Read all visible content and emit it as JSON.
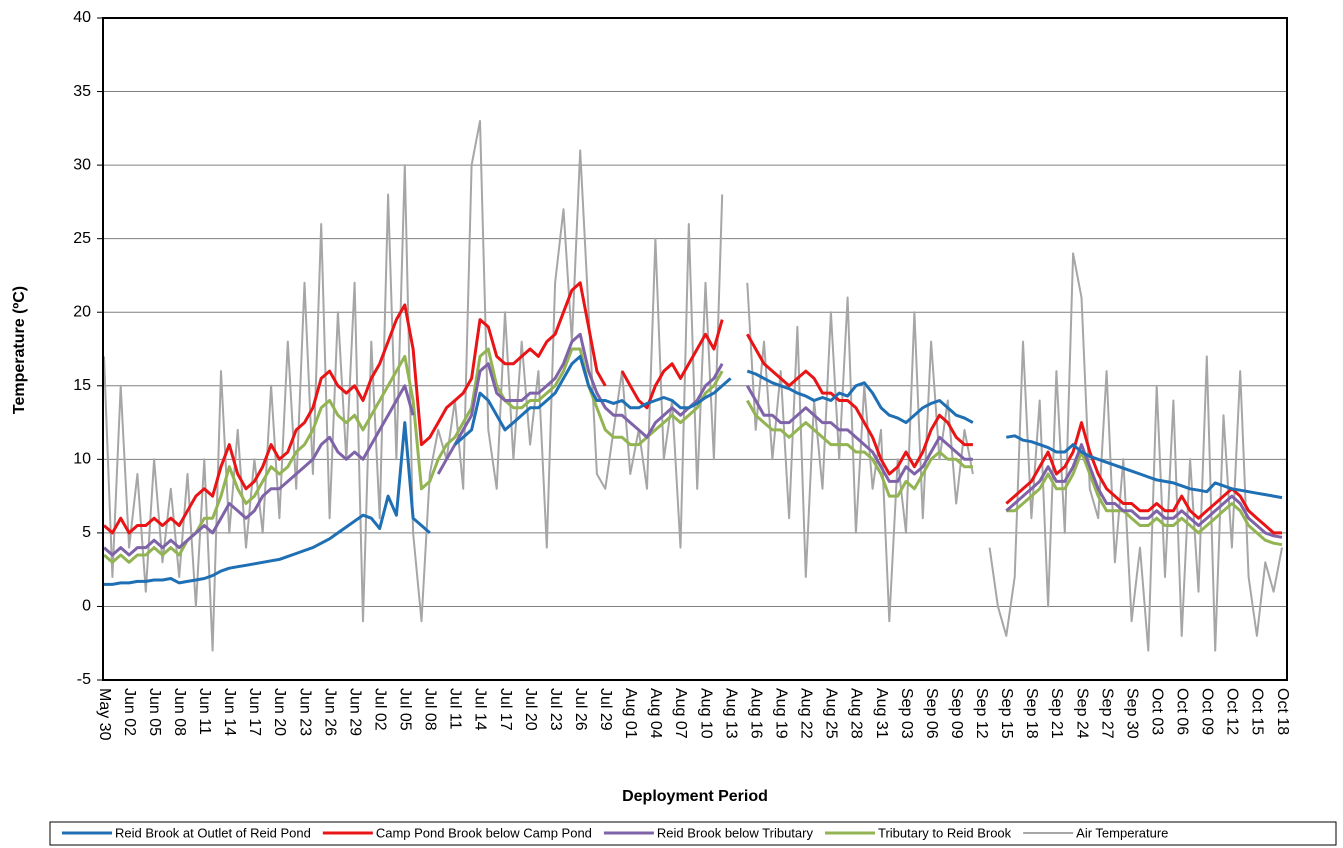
{
  "chart_data": {
    "type": "line",
    "y_label": "Temperature (ºC)",
    "x_label": "Deployment Period",
    "ylim": [
      -5,
      40
    ],
    "yticks": [
      -5,
      0,
      5,
      10,
      15,
      20,
      25,
      30,
      35,
      40
    ],
    "grid": true,
    "legend": "bottom",
    "categories": [
      "May 30",
      null,
      null,
      "Jun 02",
      null,
      null,
      "Jun 05",
      null,
      null,
      "Jun 08",
      null,
      null,
      "Jun 11",
      null,
      null,
      "Jun 14",
      null,
      null,
      "Jun 17",
      null,
      null,
      "Jun 20",
      null,
      null,
      "Jun 23",
      null,
      null,
      "Jun 26",
      null,
      null,
      "Jun 29",
      null,
      null,
      "Jul 02",
      null,
      null,
      "Jul 05",
      null,
      null,
      "Jul 08",
      null,
      null,
      "Jul 11",
      null,
      null,
      "Jul 14",
      null,
      null,
      "Jul 17",
      null,
      null,
      "Jul 20",
      null,
      null,
      "Jul 23",
      null,
      null,
      "Jul 26",
      null,
      null,
      "Jul 29",
      null,
      null,
      "Aug 01",
      null,
      null,
      "Aug 04",
      null,
      null,
      "Aug 07",
      null,
      null,
      "Aug 10",
      null,
      null,
      "Aug 13",
      null,
      null,
      "Aug 16",
      null,
      null,
      "Aug 19",
      null,
      null,
      "Aug 22",
      null,
      null,
      "Aug 25",
      null,
      null,
      "Aug 28",
      null,
      null,
      "Aug 31",
      null,
      null,
      "Sep 03",
      null,
      null,
      "Sep 06",
      null,
      null,
      "Sep 09",
      null,
      null,
      "Sep 12",
      null,
      null,
      "Sep 15",
      null,
      null,
      "Sep 18",
      null,
      null,
      "Sep 21",
      null,
      null,
      "Sep 24",
      null,
      null,
      "Sep 27",
      null,
      null,
      "Sep 30",
      null,
      null,
      "Oct 03",
      null,
      null,
      "Oct 06",
      null,
      null,
      "Oct 09",
      null,
      null,
      "Oct 12",
      null,
      null,
      "Oct 15",
      null,
      null,
      "Oct 18"
    ],
    "series": [
      {
        "name": "Reid Brook at Outlet of Reid Pond",
        "color": "#1f6fb4",
        "values": [
          1.5,
          1.5,
          1.6,
          1.6,
          1.7,
          1.7,
          1.8,
          1.8,
          1.9,
          1.6,
          1.7,
          1.8,
          1.9,
          2.1,
          2.4,
          2.6,
          2.7,
          2.8,
          2.9,
          3.0,
          3.1,
          3.2,
          3.4,
          3.6,
          3.8,
          4.0,
          4.3,
          4.6,
          5.0,
          5.4,
          5.8,
          6.2,
          6.0,
          5.3,
          7.5,
          6.2,
          12.5,
          6.0,
          5.5,
          5.0,
          null,
          null,
          11.0,
          11.5,
          12.0,
          14.5,
          14.0,
          13.0,
          12.0,
          12.5,
          13.0,
          13.5,
          13.5,
          14.0,
          14.5,
          15.5,
          16.5,
          17.0,
          15.0,
          14.0,
          14.0,
          13.8,
          14.0,
          13.5,
          13.5,
          13.8,
          14.0,
          14.2,
          14.0,
          13.5,
          13.5,
          13.8,
          14.2,
          14.5,
          15.0,
          15.5,
          null,
          16.0,
          15.8,
          15.5,
          15.2,
          15.0,
          14.8,
          14.5,
          14.3,
          14.0,
          14.2,
          14.0,
          14.5,
          14.3,
          15.0,
          15.2,
          14.5,
          13.5,
          13.0,
          12.8,
          12.5,
          13.0,
          13.5,
          13.8,
          14.0,
          13.5,
          13.0,
          12.8,
          12.5,
          null,
          null,
          null,
          11.5,
          11.6,
          11.3,
          11.2,
          11.0,
          10.8,
          10.5,
          10.5,
          11.0,
          10.5,
          10.2,
          10.0,
          9.8,
          9.6,
          9.4,
          9.2,
          9.0,
          8.8,
          8.6,
          8.5,
          8.4,
          8.2,
          8.0,
          7.9,
          7.8,
          8.4,
          8.2,
          8.0,
          7.9,
          7.8,
          7.7,
          7.6,
          7.5,
          7.4
        ]
      },
      {
        "name": "Camp Pond Brook below Camp Pond",
        "color": "#e81416",
        "values": [
          5.5,
          5.0,
          6.0,
          5.0,
          5.5,
          5.5,
          6.0,
          5.5,
          6.0,
          5.5,
          6.5,
          7.5,
          8.0,
          7.5,
          9.5,
          11.0,
          9.0,
          8.0,
          8.5,
          9.5,
          11.0,
          10.0,
          10.5,
          12.0,
          12.5,
          13.5,
          15.5,
          16.0,
          15.0,
          14.5,
          15.0,
          14.0,
          15.5,
          16.5,
          18.0,
          19.5,
          20.5,
          17.5,
          11.0,
          11.5,
          12.5,
          13.5,
          14.0,
          14.5,
          15.5,
          19.5,
          19.0,
          17.0,
          16.5,
          16.5,
          17.0,
          17.5,
          17.0,
          18.0,
          18.5,
          20.0,
          21.5,
          22.0,
          19.0,
          16.0,
          15.0,
          null,
          16.0,
          15.0,
          14.0,
          13.5,
          15.0,
          16.0,
          16.5,
          15.5,
          16.5,
          17.5,
          18.5,
          17.5,
          19.5,
          null,
          null,
          18.5,
          17.5,
          16.5,
          16.0,
          15.5,
          15.0,
          15.5,
          16.0,
          15.5,
          14.5,
          14.5,
          14.0,
          14.0,
          13.5,
          12.5,
          11.5,
          10.0,
          9.0,
          9.5,
          10.5,
          9.5,
          10.5,
          12.0,
          13.0,
          12.5,
          11.5,
          11.0,
          11.0,
          null,
          null,
          null,
          7.0,
          7.5,
          8.0,
          8.5,
          9.5,
          10.5,
          9.0,
          9.5,
          10.5,
          12.5,
          10.5,
          9.0,
          8.0,
          7.5,
          7.0,
          7.0,
          6.5,
          6.5,
          7.0,
          6.5,
          6.5,
          7.5,
          6.5,
          6.0,
          6.5,
          7.0,
          7.5,
          8.0,
          7.5,
          6.5,
          6.0,
          5.5,
          5.0,
          5.0
        ]
      },
      {
        "name": "Reid Brook below Tributary",
        "color": "#7f63a8",
        "values": [
          4.0,
          3.5,
          4.0,
          3.5,
          4.0,
          4.0,
          4.5,
          4.0,
          4.5,
          4.0,
          4.5,
          5.0,
          5.5,
          5.0,
          6.0,
          7.0,
          6.5,
          6.0,
          6.5,
          7.5,
          8.0,
          8.0,
          8.5,
          9.0,
          9.5,
          10.0,
          11.0,
          11.5,
          10.5,
          10.0,
          10.5,
          10.0,
          11.0,
          12.0,
          13.0,
          14.0,
          15.0,
          13.0,
          null,
          null,
          9.0,
          10.0,
          11.0,
          12.0,
          13.0,
          16.0,
          16.5,
          14.5,
          14.0,
          14.0,
          14.0,
          14.5,
          14.5,
          15.0,
          15.5,
          16.5,
          18.0,
          18.5,
          16.0,
          14.5,
          13.5,
          13.0,
          13.0,
          12.5,
          12.0,
          11.5,
          12.5,
          13.0,
          13.5,
          13.0,
          13.5,
          14.0,
          15.0,
          15.5,
          16.5,
          null,
          null,
          15.0,
          14.0,
          13.0,
          13.0,
          12.5,
          12.5,
          13.0,
          13.5,
          13.0,
          12.5,
          12.5,
          12.0,
          12.0,
          11.5,
          11.0,
          10.5,
          9.5,
          8.5,
          8.5,
          9.5,
          9.0,
          9.5,
          10.5,
          11.5,
          11.0,
          10.5,
          10.0,
          10.0,
          null,
          null,
          null,
          6.5,
          7.0,
          7.5,
          8.0,
          8.5,
          9.5,
          8.5,
          8.5,
          9.5,
          11.0,
          9.5,
          8.0,
          7.0,
          7.0,
          6.5,
          6.5,
          6.0,
          6.0,
          6.5,
          6.0,
          6.0,
          6.5,
          6.0,
          5.5,
          6.0,
          6.5,
          7.0,
          7.5,
          7.0,
          6.0,
          5.5,
          5.0,
          4.8,
          4.7
        ]
      },
      {
        "name": "Tributary to Reid Brook",
        "color": "#93b452",
        "values": [
          3.5,
          3.0,
          3.5,
          3.0,
          3.5,
          3.5,
          4.0,
          3.5,
          4.0,
          3.5,
          4.5,
          5.0,
          6.0,
          6.0,
          7.5,
          9.5,
          8.0,
          7.0,
          7.5,
          8.5,
          9.5,
          9.0,
          9.5,
          10.5,
          11.0,
          12.0,
          13.5,
          14.0,
          13.0,
          12.5,
          13.0,
          12.0,
          13.0,
          14.0,
          15.0,
          16.0,
          17.0,
          14.0,
          8.0,
          8.5,
          10.0,
          11.0,
          11.5,
          12.5,
          13.5,
          17.0,
          17.5,
          15.0,
          14.0,
          13.5,
          13.5,
          14.0,
          14.0,
          14.5,
          15.0,
          16.0,
          17.5,
          17.5,
          15.0,
          13.5,
          12.0,
          11.5,
          11.5,
          11.0,
          11.0,
          11.5,
          12.0,
          12.5,
          13.0,
          12.5,
          13.0,
          13.5,
          14.5,
          15.0,
          16.0,
          null,
          null,
          14.0,
          13.0,
          12.5,
          12.0,
          12.0,
          11.5,
          12.0,
          12.5,
          12.0,
          11.5,
          11.0,
          11.0,
          11.0,
          10.5,
          10.5,
          10.0,
          9.0,
          7.5,
          7.5,
          8.5,
          8.0,
          9.0,
          10.0,
          10.5,
          10.0,
          10.0,
          9.5,
          9.5,
          null,
          null,
          null,
          6.5,
          6.5,
          7.0,
          7.5,
          8.0,
          9.0,
          8.0,
          8.0,
          9.0,
          10.5,
          9.0,
          7.5,
          6.5,
          6.5,
          6.5,
          6.0,
          5.5,
          5.5,
          6.0,
          5.5,
          5.5,
          6.0,
          5.5,
          5.0,
          5.5,
          6.0,
          6.5,
          7.0,
          6.5,
          5.5,
          5.0,
          4.5,
          4.3,
          4.2
        ]
      },
      {
        "name": "Air Temperature",
        "color": "#a6a6a6",
        "values": [
          17,
          2,
          15,
          4,
          9,
          1,
          10,
          3,
          8,
          2,
          9,
          0,
          10,
          -3,
          16,
          5,
          12,
          4,
          10,
          5,
          15,
          6,
          18,
          8,
          22,
          9,
          26,
          6,
          20,
          10,
          22,
          -1,
          18,
          6,
          28,
          10,
          30,
          5,
          -1,
          9,
          12,
          10,
          14,
          8,
          30,
          33,
          12,
          8,
          20,
          10,
          18,
          11,
          16,
          4,
          22,
          27,
          18,
          31,
          20,
          9,
          8,
          12,
          16,
          9,
          12,
          8,
          25,
          10,
          14,
          4,
          26,
          8,
          22,
          10,
          28,
          null,
          null,
          22,
          12,
          18,
          10,
          16,
          6,
          19,
          2,
          14,
          8,
          20,
          10,
          21,
          5,
          15,
          8,
          12,
          -1,
          10,
          5,
          20,
          6,
          18,
          10,
          14,
          7,
          12,
          9,
          null,
          4,
          0,
          -2,
          2,
          18,
          6,
          14,
          0,
          16,
          5,
          24,
          21,
          8,
          6,
          16,
          3,
          10,
          -1,
          4,
          -3,
          15,
          2,
          14,
          -2,
          10,
          1,
          17,
          -3,
          13,
          4,
          16,
          2,
          -2,
          3,
          1,
          4
        ]
      }
    ]
  }
}
